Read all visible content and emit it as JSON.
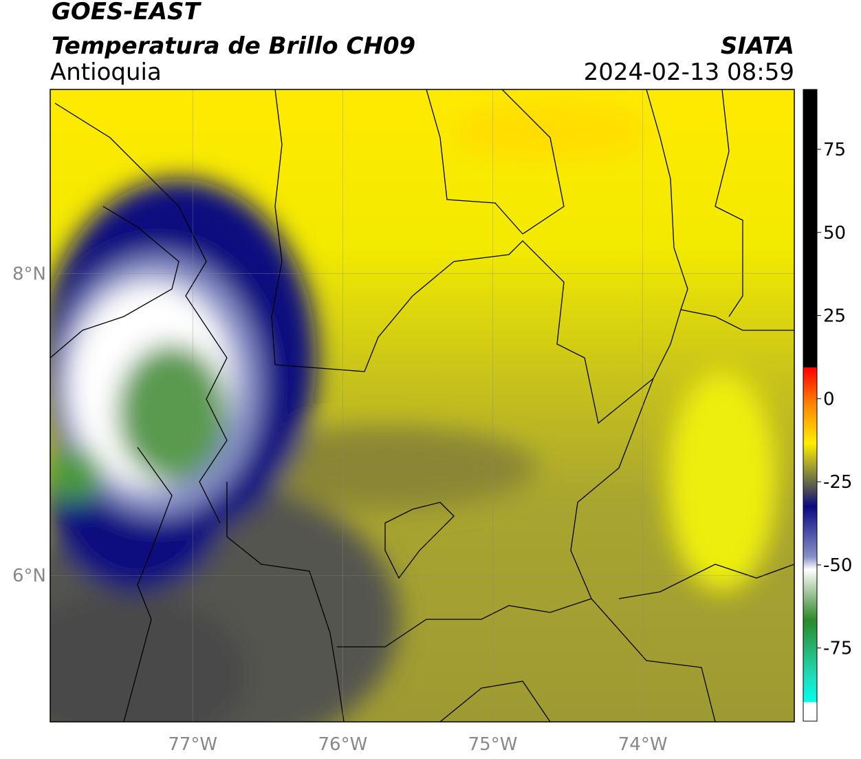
{
  "header": {
    "satellite": "GOES-EAST",
    "product": "Temperatura de Brillo CH09",
    "region": "Antioquia",
    "source": "SIATA",
    "datetime": "2024-02-13 08:59"
  },
  "map": {
    "xlim": [
      -77.95,
      -72.99
    ],
    "ylim": [
      5.03,
      9.22
    ],
    "xticks": [
      {
        "value": -77,
        "label": "77°W"
      },
      {
        "value": -76,
        "label": "76°W"
      },
      {
        "value": -75,
        "label": "75°W"
      },
      {
        "value": -74,
        "label": "74°W"
      }
    ],
    "yticks": [
      {
        "value": 8,
        "label": "8°N"
      },
      {
        "value": 6,
        "label": "6°N"
      }
    ],
    "grid": true
  },
  "colorbar": {
    "lim": [
      -97,
      93
    ],
    "ticks": [
      75,
      50,
      25,
      0,
      -25,
      -50,
      -75
    ]
  }
}
